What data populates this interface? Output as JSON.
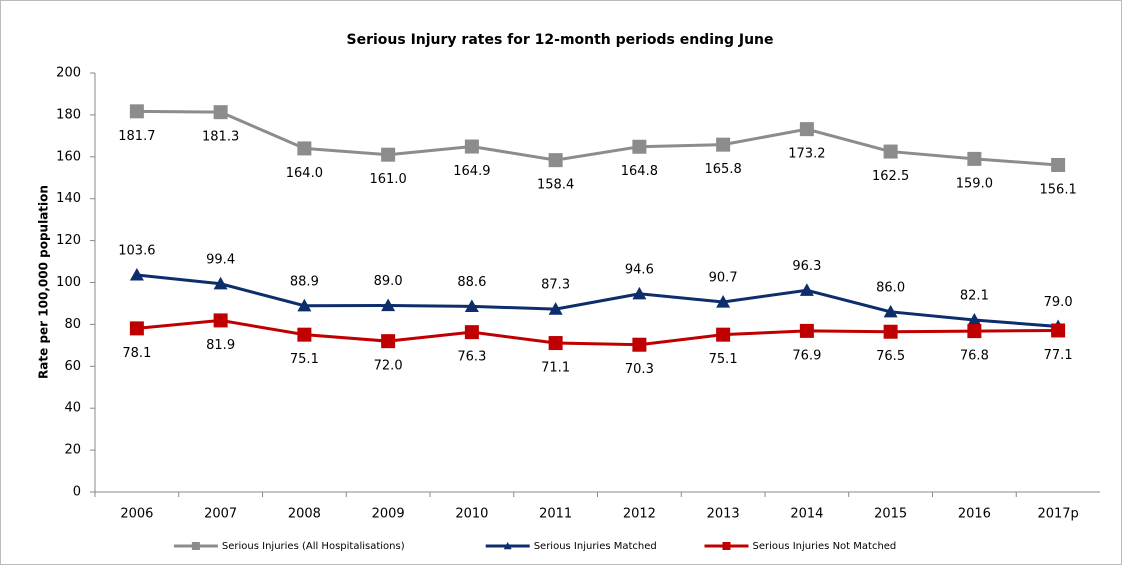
{
  "chart_data": {
    "type": "line",
    "title": "Serious Injury rates for 12-month periods ending June",
    "y_label": "Rate per 100,000 population",
    "categories": [
      "2006",
      "2007",
      "2008",
      "2009",
      "2010",
      "2011",
      "2012",
      "2013",
      "2014",
      "2015",
      "2016",
      "2017p"
    ],
    "ylim": [
      0,
      200
    ],
    "yticks": [
      0,
      20,
      40,
      60,
      80,
      100,
      120,
      140,
      160,
      180,
      200
    ],
    "grid": false,
    "legend": "bottom",
    "series": [
      {
        "name": "Serious Injuries (All Hospitalisations)",
        "color": "#8c8c8c",
        "marker": "square",
        "label_position": "below",
        "values": [
          181.7,
          181.3,
          164.0,
          161.0,
          164.9,
          158.4,
          164.8,
          165.8,
          173.2,
          162.5,
          159.0,
          156.1
        ],
        "value_labels": [
          "181.7",
          "181.3",
          "164.0",
          "161.0",
          "164.9",
          "158.4",
          "164.8",
          "165.8",
          "173.2",
          "162.5",
          "159.0",
          "156.1"
        ]
      },
      {
        "name": "Serious Injuries Matched",
        "color": "#0d2d6b",
        "marker": "triangle",
        "label_position": "above",
        "values": [
          103.6,
          99.4,
          88.9,
          89.0,
          88.6,
          87.3,
          94.6,
          90.7,
          96.3,
          86.0,
          82.1,
          79.0
        ],
        "value_labels": [
          "103.6",
          "99.4",
          "88.9",
          "89.0",
          "88.6",
          "87.3",
          "94.6",
          "90.7",
          "96.3",
          "86.0",
          "82.1",
          "79.0"
        ]
      },
      {
        "name": "Serious Injuries Not Matched",
        "color": "#c00000",
        "marker": "square",
        "label_position": "below",
        "values": [
          78.1,
          81.9,
          75.1,
          72.0,
          76.3,
          71.1,
          70.3,
          75.1,
          76.9,
          76.5,
          76.8,
          77.1
        ],
        "value_labels": [
          "78.1",
          "81.9",
          "75.1",
          "72.0",
          "76.3",
          "71.1",
          "70.3",
          "75.1",
          "76.9",
          "76.5",
          "76.8",
          "77.1"
        ]
      }
    ]
  }
}
